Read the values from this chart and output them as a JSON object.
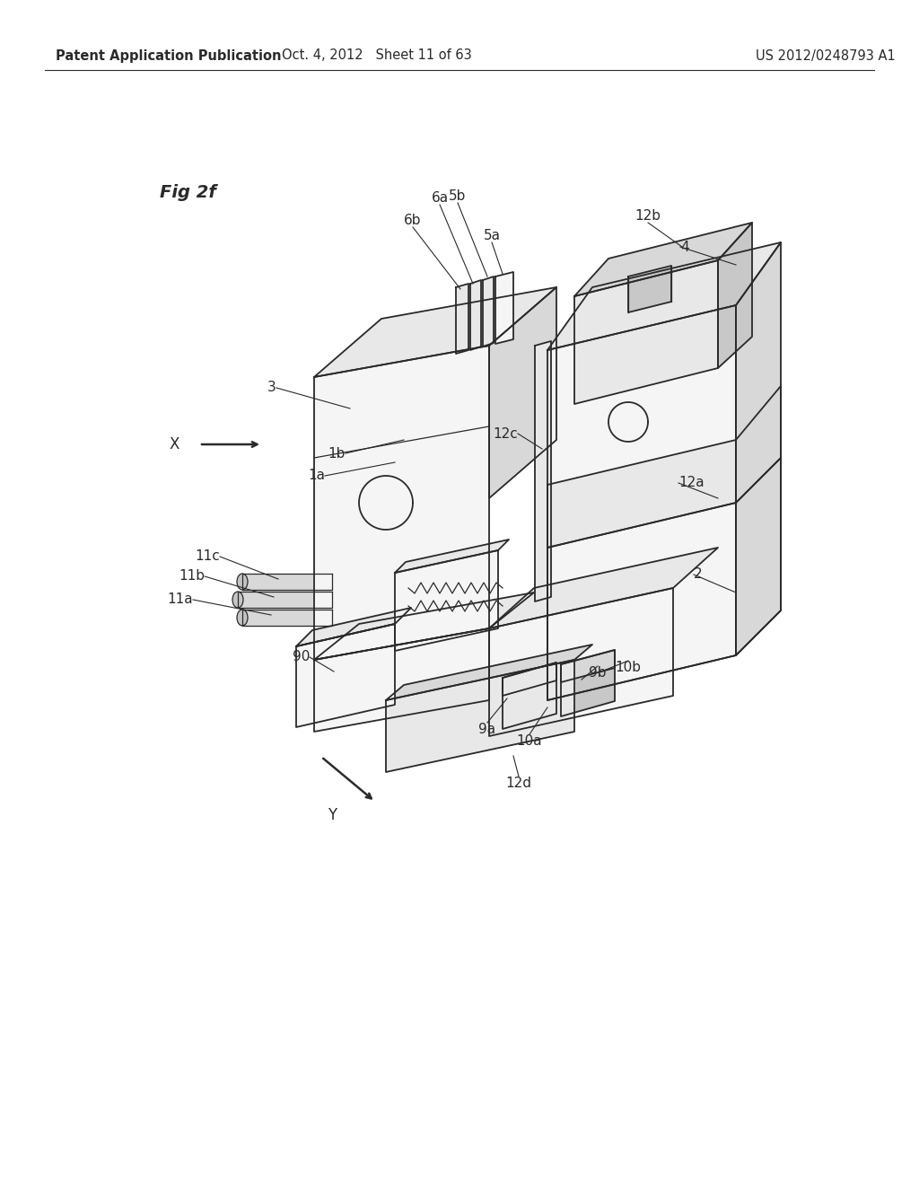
{
  "bg_color": "#ffffff",
  "header_left": "Patent Application Publication",
  "header_mid": "Oct. 4, 2012   Sheet 11 of 63",
  "header_right": "US 2012/0248793 A1",
  "fig_label": "Fig 2f",
  "line_color": "#2a2a2a",
  "fill_light": "#f5f5f5",
  "fill_mid": "#e8e8e8",
  "fill_dark": "#d8d8d8",
  "fill_darker": "#c8c8c8",
  "header_fontsize": 10.5,
  "label_fontsize": 11,
  "fig_label_fontsize": 14
}
